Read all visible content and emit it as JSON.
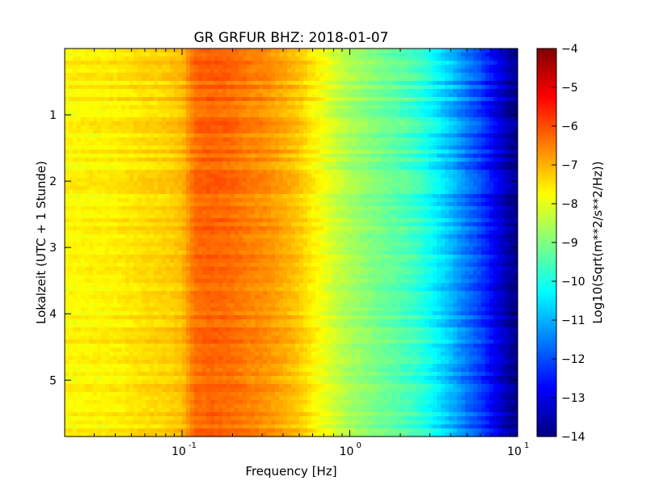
{
  "chart_data": {
    "type": "heatmap",
    "title": "GR GRFUR BHZ: 2018-01-07",
    "xlabel": "Frequency [Hz]",
    "ylabel": "Lokalzeit (UTC + 1 Stunde)",
    "x_scale": "log",
    "xlim": [
      0.02,
      10
    ],
    "ylim": [
      0,
      5.85
    ],
    "y_inverted": true,
    "x_ticks": [
      {
        "value": 0.1,
        "base": "10",
        "exp": "-1"
      },
      {
        "value": 1,
        "base": "10",
        "exp": "0"
      },
      {
        "value": 10,
        "base": "10",
        "exp": "1"
      }
    ],
    "y_ticks": [
      {
        "value": 1,
        "label": "1"
      },
      {
        "value": 2,
        "label": "2"
      },
      {
        "value": 3,
        "label": "3"
      },
      {
        "value": 4,
        "label": "4"
      },
      {
        "value": 5,
        "label": "5"
      }
    ],
    "colorbar": {
      "label": "Log10(Sqrt(m**2/s**2/Hz))",
      "colormap": "jet",
      "range": [
        -14,
        -4
      ],
      "ticks": [
        {
          "value": -4,
          "label": "−4"
        },
        {
          "value": -5,
          "label": "−5"
        },
        {
          "value": -6,
          "label": "−6"
        },
        {
          "value": -7,
          "label": "−7"
        },
        {
          "value": -8,
          "label": "−8"
        },
        {
          "value": -9,
          "label": "−9"
        },
        {
          "value": -10,
          "label": "−10"
        },
        {
          "value": -11,
          "label": "−11"
        },
        {
          "value": -12,
          "label": "−12"
        },
        {
          "value": -13,
          "label": "−13"
        },
        {
          "value": -14,
          "label": "−14"
        }
      ]
    },
    "spectrum_profile": {
      "freq": [
        0.02,
        0.04,
        0.06,
        0.08,
        0.1,
        0.12,
        0.15,
        0.2,
        0.25,
        0.3,
        0.4,
        0.5,
        0.6,
        0.7,
        0.8,
        1.0,
        1.5,
        2.0,
        2.5,
        3.0,
        4.0,
        5.0,
        6.0,
        7.0,
        8.0,
        9.0,
        10.0
      ],
      "value": [
        -7.7,
        -7.6,
        -7.4,
        -7.3,
        -7.1,
        -6.3,
        -6.2,
        -6.3,
        -6.5,
        -6.6,
        -6.9,
        -7.2,
        -7.6,
        -7.9,
        -8.2,
        -8.6,
        -9.1,
        -9.4,
        -9.7,
        -10.1,
        -10.9,
        -11.6,
        -12.1,
        -12.7,
        -13.2,
        -13.7,
        -13.9
      ]
    }
  }
}
